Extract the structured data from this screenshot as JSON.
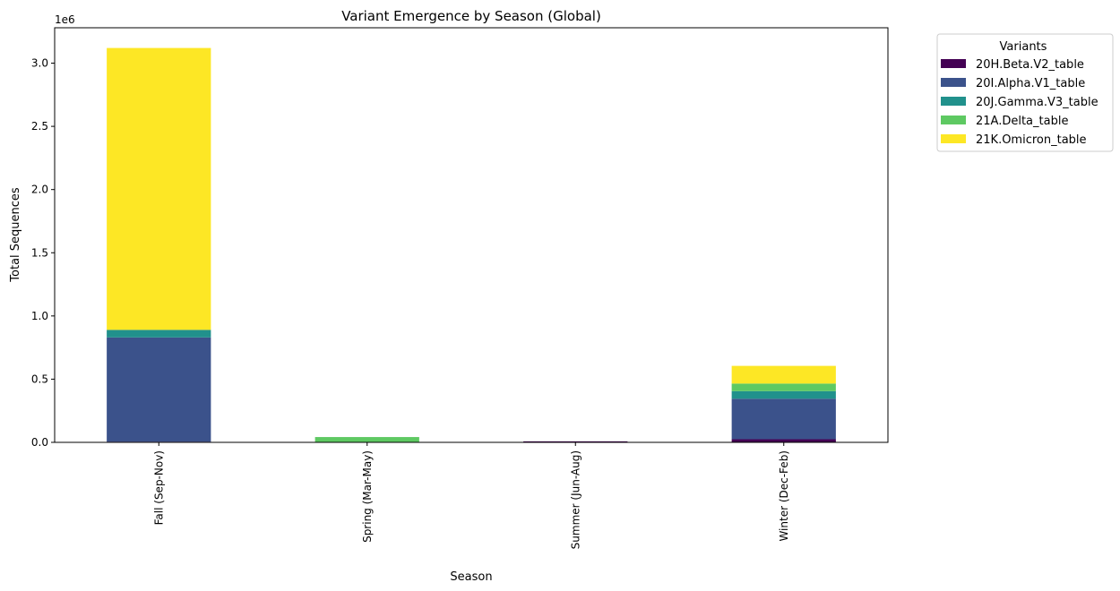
{
  "chart_data": {
    "type": "bar",
    "stacked": true,
    "title": "Variant Emergence by Season (Global)",
    "xlabel": "Season",
    "ylabel": "Total Sequences",
    "y_offset_label": "1e6",
    "y_unit_scale": 1000000,
    "ylim": [
      0,
      3280000
    ],
    "yticks": [
      0,
      500000,
      1000000,
      1500000,
      2000000,
      2500000,
      3000000
    ],
    "ytick_labels": [
      "0.0",
      "0.5",
      "1.0",
      "1.5",
      "2.0",
      "2.5",
      "3.0"
    ],
    "categories": [
      "Fall (Sep-Nov)",
      "Spring (Mar-May)",
      "Summer (Jun-Aug)",
      "Winter (Dec-Feb)"
    ],
    "grid": false,
    "legend_title": "Variants",
    "legend_position": "outside right, top",
    "series": [
      {
        "name": "20H.Beta.V2_table",
        "color": "#440154",
        "values": [
          5000,
          0,
          8000,
          25000
        ]
      },
      {
        "name": "20I.Alpha.V1_table",
        "color": "#3b528b",
        "values": [
          825000,
          0,
          0,
          320000
        ]
      },
      {
        "name": "20J.Gamma.V3_table",
        "color": "#21918c",
        "values": [
          60000,
          0,
          0,
          60000
        ]
      },
      {
        "name": "21A.Delta_table",
        "color": "#5ec962",
        "values": [
          0,
          42000,
          0,
          60000
        ]
      },
      {
        "name": "21K.Omicron_table",
        "color": "#fde725",
        "values": [
          2230000,
          0,
          0,
          140000
        ]
      }
    ]
  }
}
